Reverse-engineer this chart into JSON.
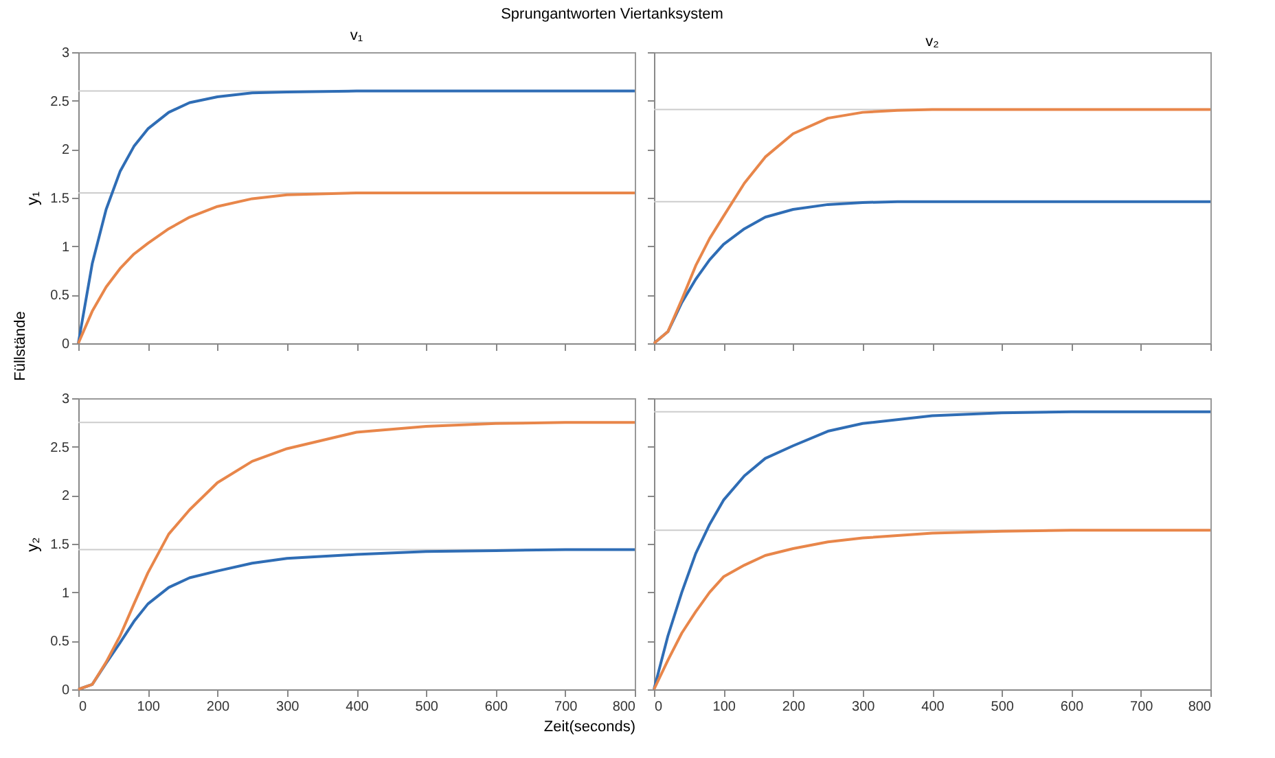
{
  "chart_data": [
    {
      "type": "line",
      "title": "v₁",
      "ylabel": "y₁",
      "annotations": [
        "Sprungantworten Viertanksystem",
        "Füllstände"
      ],
      "x": [
        0,
        20,
        40,
        60,
        80,
        100,
        130,
        160,
        200,
        250,
        300,
        400,
        500,
        600,
        700,
        800
      ],
      "xlim": [
        0,
        800
      ],
      "xticks": [
        0,
        100,
        200,
        300,
        400,
        500,
        600,
        700,
        800
      ],
      "ylim": [
        0,
        3
      ],
      "yticks": [
        0,
        0.5,
        1,
        1.5,
        2,
        2.5,
        3
      ],
      "tick_labels": "y",
      "series": [
        {
          "color": "#2f6db5",
          "values": [
            0,
            0.82,
            1.38,
            1.77,
            2.03,
            2.21,
            2.38,
            2.48,
            2.54,
            2.58,
            2.59,
            2.6,
            2.6,
            2.6,
            2.6,
            2.6
          ]
        },
        {
          "color": "#e8864a",
          "values": [
            0,
            0.33,
            0.58,
            0.77,
            0.92,
            1.03,
            1.18,
            1.3,
            1.41,
            1.49,
            1.53,
            1.55,
            1.55,
            1.55,
            1.55,
            1.55
          ]
        }
      ],
      "ref_lines": [
        {
          "axis": "y",
          "value": 2.6,
          "color": "#cccccc"
        },
        {
          "axis": "y",
          "value": 1.55,
          "color": "#cccccc"
        }
      ]
    },
    {
      "type": "line",
      "title": "v₂",
      "x": [
        0,
        20,
        40,
        60,
        80,
        100,
        130,
        160,
        200,
        250,
        300,
        350,
        400,
        500,
        600,
        700,
        800
      ],
      "xlim": [
        0,
        800
      ],
      "xticks": [
        0,
        100,
        200,
        300,
        400,
        500,
        600,
        700,
        800
      ],
      "ylim": [
        0,
        3
      ],
      "yticks": [
        0,
        0.5,
        1,
        1.5,
        2,
        2.5,
        3
      ],
      "tick_labels": false,
      "series": [
        {
          "color": "#2f6db5",
          "values": [
            0,
            0.12,
            0.42,
            0.66,
            0.86,
            1.02,
            1.18,
            1.3,
            1.38,
            1.43,
            1.45,
            1.46,
            1.46,
            1.46,
            1.46,
            1.46,
            1.46
          ]
        },
        {
          "color": "#e8864a",
          "values": [
            0,
            0.12,
            0.45,
            0.8,
            1.08,
            1.31,
            1.65,
            1.92,
            2.16,
            2.32,
            2.38,
            2.4,
            2.41,
            2.41,
            2.41,
            2.41,
            2.41
          ]
        }
      ],
      "ref_lines": [
        {
          "axis": "y",
          "value": 2.41,
          "color": "#cccccc"
        },
        {
          "axis": "y",
          "value": 1.46,
          "color": "#cccccc"
        }
      ]
    },
    {
      "type": "line",
      "ylabel": "y₂",
      "xlabel": "Zeit(seconds)",
      "x": [
        0,
        20,
        40,
        60,
        80,
        100,
        130,
        160,
        200,
        250,
        300,
        400,
        500,
        600,
        700,
        800
      ],
      "xlim": [
        0,
        800
      ],
      "xticks": [
        0,
        100,
        200,
        300,
        400,
        500,
        600,
        700,
        800
      ],
      "ylim": [
        0,
        3
      ],
      "yticks": [
        0,
        0.5,
        1,
        1.5,
        2,
        2.5,
        3
      ],
      "series": [
        {
          "color": "#2f6db5",
          "values": [
            0,
            0.05,
            0.27,
            0.48,
            0.7,
            0.88,
            1.05,
            1.15,
            1.22,
            1.3,
            1.35,
            1.39,
            1.42,
            1.43,
            1.44,
            1.44
          ]
        },
        {
          "color": "#e8864a",
          "values": [
            0,
            0.05,
            0.28,
            0.55,
            0.88,
            1.2,
            1.6,
            1.85,
            2.13,
            2.35,
            2.48,
            2.65,
            2.71,
            2.74,
            2.75,
            2.75
          ]
        }
      ],
      "ref_lines": [
        {
          "axis": "y",
          "value": 2.75,
          "color": "#cccccc"
        },
        {
          "axis": "y",
          "value": 1.44,
          "color": "#cccccc"
        }
      ]
    },
    {
      "type": "line",
      "x": [
        0,
        20,
        40,
        60,
        80,
        100,
        130,
        160,
        200,
        250,
        300,
        400,
        500,
        600,
        700,
        800
      ],
      "xlim": [
        0,
        800
      ],
      "xticks": [
        0,
        100,
        200,
        300,
        400,
        500,
        600,
        700,
        800
      ],
      "ylim": [
        0,
        3
      ],
      "yticks": [
        0,
        0.5,
        1,
        1.5,
        2,
        2.5,
        3
      ],
      "tick_labels": "x",
      "series": [
        {
          "color": "#2f6db5",
          "values": [
            0,
            0.55,
            1.0,
            1.4,
            1.7,
            1.95,
            2.2,
            2.38,
            2.51,
            2.66,
            2.74,
            2.82,
            2.85,
            2.86,
            2.86,
            2.86
          ]
        },
        {
          "color": "#e8864a",
          "values": [
            0,
            0.3,
            0.58,
            0.8,
            1.0,
            1.16,
            1.28,
            1.38,
            1.45,
            1.52,
            1.56,
            1.61,
            1.63,
            1.64,
            1.64,
            1.64
          ]
        }
      ],
      "ref_lines": [
        {
          "axis": "y",
          "value": 2.86,
          "color": "#cccccc"
        },
        {
          "axis": "y",
          "value": 1.64,
          "color": "#cccccc"
        }
      ]
    }
  ]
}
